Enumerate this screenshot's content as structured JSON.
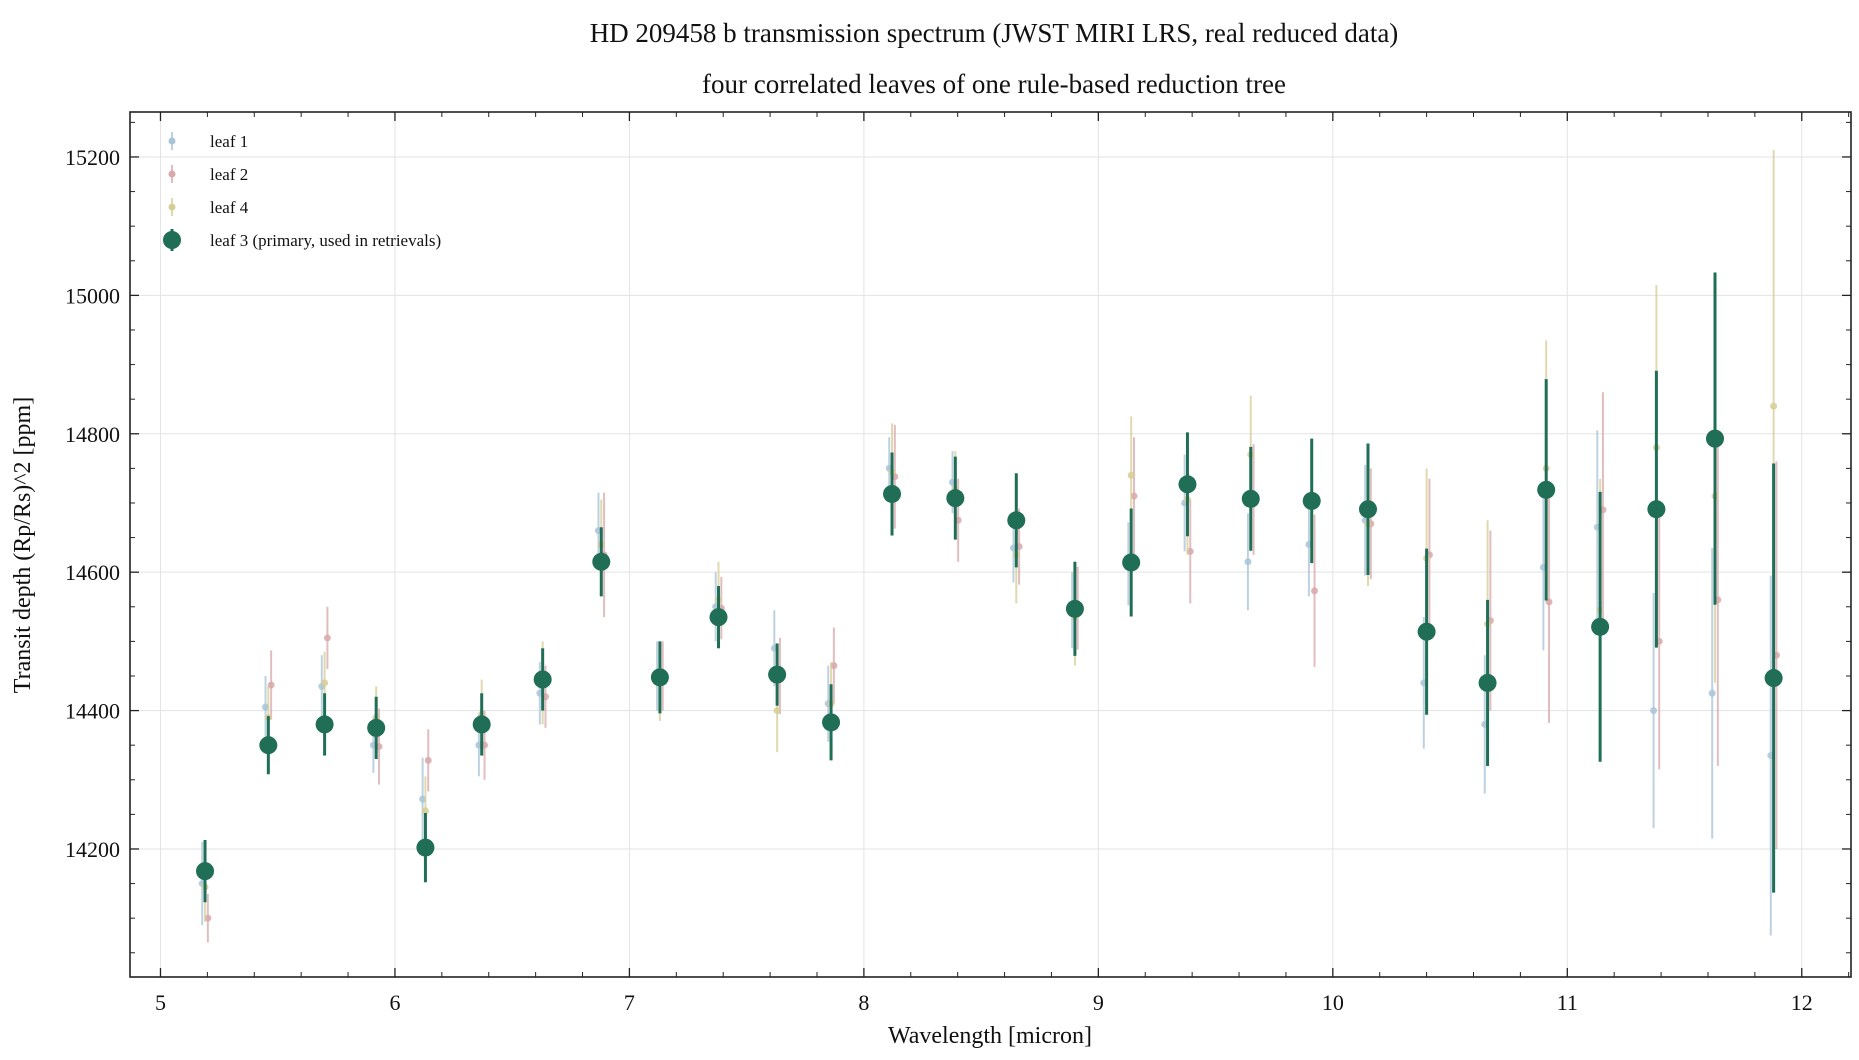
{
  "chart_data": {
    "type": "scatter",
    "title": "HD 209458 b transmission spectrum (JWST MIRI LRS, real reduced data)",
    "subtitle": "four correlated leaves of one rule-based reduction tree",
    "xlabel": "Wavelength [micron]",
    "ylabel": "Transit depth (Rp/Rs)^2 [ppm]",
    "xlim": [
      4.87,
      12.21
    ],
    "ylim": [
      14015,
      15265
    ],
    "xticks": [
      5,
      6,
      7,
      8,
      9,
      10,
      11,
      12
    ],
    "yticks": [
      14200,
      14400,
      14600,
      14800,
      15000,
      15200
    ],
    "grid": true,
    "legend_position": "top-left",
    "series": [
      {
        "name": "leaf 1",
        "color": "#a8c4d8",
        "x": [
          5.19,
          5.46,
          5.7,
          5.92,
          6.13,
          6.37,
          6.63,
          6.88,
          7.13,
          7.38,
          7.63,
          7.86,
          8.12,
          8.39,
          8.65,
          8.9,
          9.14,
          9.38,
          9.65,
          9.91,
          10.15,
          10.4,
          10.66,
          10.91,
          11.14,
          11.38,
          11.63,
          11.88
        ],
        "y": [
          14150,
          14405,
          14435,
          14350,
          14272,
          14350,
          14425,
          14660,
          14450,
          14550,
          14490,
          14410,
          14750,
          14730,
          14635,
          14545,
          14612,
          14700,
          14615,
          14640,
          14675,
          14440,
          14380,
          14607,
          14665,
          14400,
          14425,
          14335
        ],
        "yerr": [
          60,
          45,
          45,
          40,
          60,
          45,
          45,
          55,
          50,
          50,
          55,
          55,
          45,
          45,
          50,
          55,
          60,
          70,
          70,
          75,
          80,
          95,
          100,
          120,
          140,
          170,
          210,
          260
        ]
      },
      {
        "name": "leaf 2",
        "color": "#d8a8aa",
        "x": [
          5.19,
          5.46,
          5.7,
          5.92,
          6.13,
          6.37,
          6.63,
          6.88,
          7.13,
          7.38,
          7.63,
          7.86,
          8.12,
          8.39,
          8.65,
          8.9,
          9.14,
          9.38,
          9.65,
          9.91,
          10.15,
          10.4,
          10.66,
          10.91,
          11.14,
          11.38,
          11.63,
          11.88
        ],
        "y": [
          14100,
          14437,
          14505,
          14348,
          14328,
          14350,
          14420,
          14625,
          14450,
          14548,
          14450,
          14465,
          14738,
          14675,
          14637,
          14548,
          14710,
          14630,
          14705,
          14573,
          14670,
          14625,
          14530,
          14557,
          14690,
          14500,
          14560,
          14480
        ],
        "yerr": [
          35,
          50,
          45,
          55,
          45,
          50,
          45,
          90,
          50,
          45,
          55,
          55,
          75,
          60,
          55,
          60,
          85,
          75,
          80,
          110,
          80,
          110,
          130,
          175,
          170,
          185,
          240,
          280
        ]
      },
      {
        "name": "leaf 4",
        "color": "#d6cd96",
        "x": [
          5.19,
          5.46,
          5.7,
          5.92,
          6.13,
          6.37,
          6.63,
          6.88,
          7.13,
          7.38,
          7.63,
          7.86,
          8.12,
          8.39,
          8.65,
          8.9,
          9.14,
          9.38,
          9.65,
          9.91,
          10.15,
          10.4,
          10.66,
          10.91,
          11.14,
          11.38,
          11.63,
          11.88
        ],
        "y": [
          14145,
          14390,
          14440,
          14390,
          14255,
          14395,
          14440,
          14640,
          14440,
          14560,
          14400,
          14410,
          14745,
          14720,
          14625,
          14535,
          14740,
          14705,
          14770,
          14700,
          14670,
          14620,
          14525,
          14750,
          14545,
          14780,
          14710,
          14840
        ],
        "yerr": [
          50,
          45,
          45,
          45,
          50,
          50,
          60,
          65,
          55,
          55,
          60,
          60,
          70,
          55,
          70,
          70,
          85,
          80,
          85,
          80,
          90,
          130,
          150,
          185,
          190,
          235,
          270,
          370
        ]
      },
      {
        "name": "leaf 3 (primary, used in retrievals)",
        "color": "#1f6e55",
        "primary": true,
        "x": [
          5.19,
          5.46,
          5.7,
          5.92,
          6.13,
          6.37,
          6.63,
          6.88,
          7.13,
          7.38,
          7.63,
          7.86,
          8.12,
          8.39,
          8.65,
          8.9,
          9.14,
          9.38,
          9.65,
          9.91,
          10.15,
          10.4,
          10.66,
          10.91,
          11.14,
          11.38,
          11.63,
          11.88
        ],
        "y": [
          14168,
          14350,
          14380,
          14375,
          14202,
          14380,
          14445,
          14615,
          14448,
          14535,
          14452,
          14383,
          14713,
          14707,
          14675,
          14547,
          14614,
          14727,
          14706,
          14703,
          14691,
          14514,
          14440,
          14719,
          14521,
          14691,
          14793,
          14447
        ],
        "yerr": [
          45,
          42,
          45,
          45,
          50,
          45,
          45,
          50,
          52,
          45,
          45,
          55,
          60,
          60,
          68,
          68,
          78,
          75,
          75,
          90,
          95,
          120,
          120,
          160,
          195,
          200,
          240,
          310
        ]
      }
    ]
  }
}
